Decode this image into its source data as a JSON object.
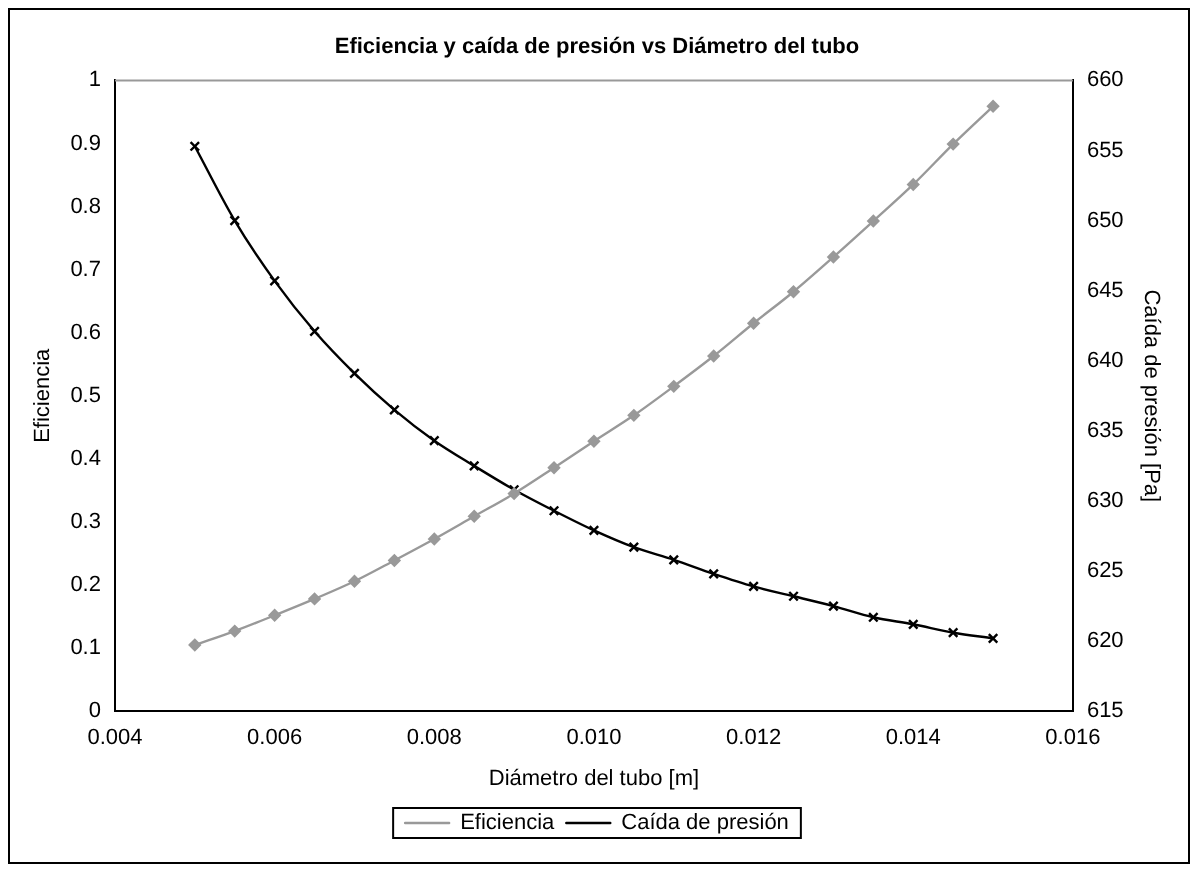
{
  "chart_data": {
    "type": "line",
    "title": "Eficiencia y caída de presión vs Diámetro del tubo",
    "xlabel": "Diámetro del tubo [m]",
    "ylabel": "Eficiencia",
    "y2label": "Caída de presión [Pa]",
    "x": [
      0.005,
      0.0055,
      0.006,
      0.0065,
      0.007,
      0.0075,
      0.008,
      0.0085,
      0.009,
      0.0095,
      0.01,
      0.0105,
      0.011,
      0.0115,
      0.012,
      0.0125,
      0.013,
      0.0135,
      0.014,
      0.0145,
      0.015
    ],
    "series": [
      {
        "name": "Eficiencia",
        "color": "#999999",
        "marker": "diamond",
        "values": [
          0.105,
          0.127,
          0.152,
          0.178,
          0.206,
          0.239,
          0.273,
          0.309,
          0.345,
          0.386,
          0.428,
          0.469,
          0.515,
          0.563,
          0.615,
          0.665,
          0.72,
          0.777,
          0.835,
          0.899,
          0.959
        ]
      },
      {
        "name": "Caída de presión",
        "color": "#000000",
        "marker": "cross",
        "axis": "y2",
        "values": [
          655.3,
          650.0,
          645.7,
          642.1,
          639.1,
          636.5,
          634.3,
          632.5,
          630.8,
          629.3,
          627.9,
          626.7,
          625.8,
          624.8,
          623.9,
          623.2,
          622.5,
          621.7,
          621.2,
          620.6,
          620.2
        ]
      }
    ],
    "xlim": [
      0.004,
      0.016
    ],
    "xticks": [
      {
        "value": 0.004,
        "label": "0.004"
      },
      {
        "value": 0.006,
        "label": "0.006"
      },
      {
        "value": 0.008,
        "label": "0.008"
      },
      {
        "value": 0.01,
        "label": "0.010"
      },
      {
        "value": 0.012,
        "label": "0.012"
      },
      {
        "value": 0.014,
        "label": "0.014"
      },
      {
        "value": 0.016,
        "label": "0.016"
      }
    ],
    "ylim": [
      0,
      1
    ],
    "yticks": [
      0,
      0.1,
      0.2,
      0.3,
      0.4,
      0.5,
      0.6,
      0.7,
      0.8,
      0.9,
      1
    ],
    "y2lim": [
      615,
      660
    ],
    "y2ticks": [
      615,
      620,
      625,
      630,
      635,
      640,
      645,
      650,
      655,
      660
    ],
    "grid": false,
    "legend": "bottom",
    "line_style": "solid"
  }
}
